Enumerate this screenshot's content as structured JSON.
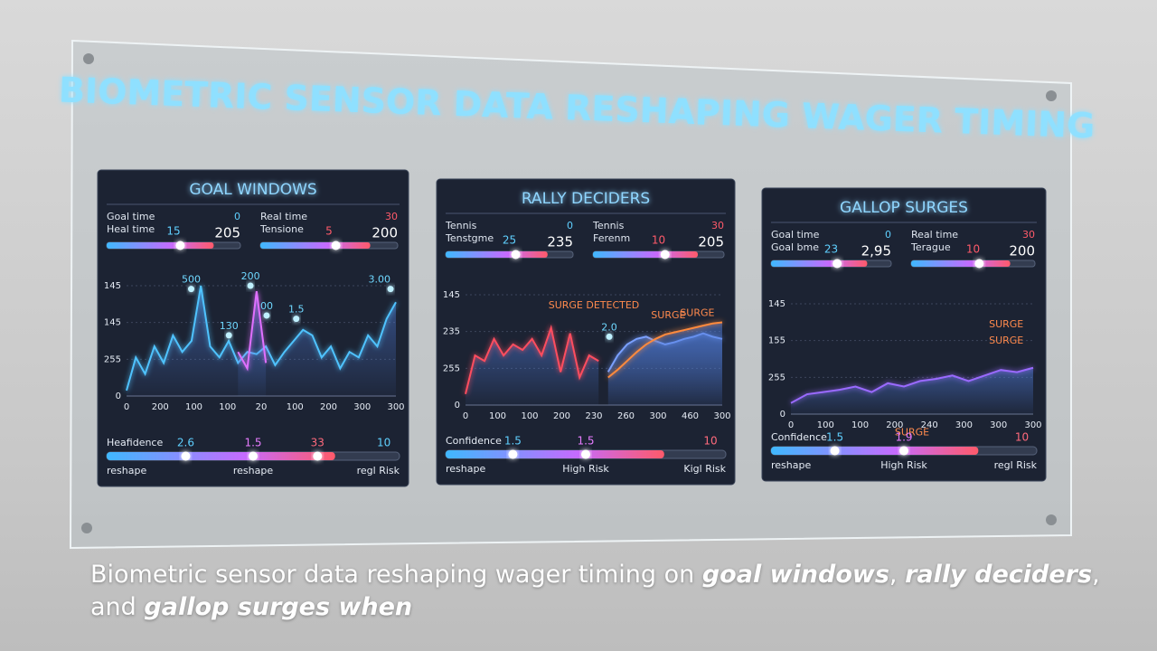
{
  "title": "BIOMETRIC SENSOR DATA RESHAPING WAGER TIMING",
  "panels": [
    {
      "title": "GOAL WINDOWS",
      "metrics": [
        {
          "label1": "Goal time",
          "value1": "0",
          "label2": "Heal time",
          "small": "15",
          "big": "205"
        },
        {
          "label1": "Real time",
          "value1": "30",
          "label2": "Tensione",
          "small": "5",
          "big": "200"
        }
      ],
      "chart": {
        "ylim": [
          0,
          100
        ],
        "y_labels": [
          "145",
          "145",
          "255",
          "0"
        ],
        "x_labels": [
          "0",
          "200",
          "100",
          "100",
          "20",
          "100",
          "200",
          "300",
          "300"
        ],
        "annotations": [
          "500",
          "200",
          "130",
          "00",
          "1.5",
          "3.00"
        ],
        "series": [
          {
            "color": "#4fc3ff",
            "values": [
              5,
              35,
              20,
              45,
              30,
              55,
              40,
              50,
              100,
              45,
              35,
              50,
              30,
              40,
              38,
              45,
              28,
              40,
              50,
              60,
              55,
              35,
              45,
              25,
              40,
              35,
              55,
              45,
              70,
              85
            ]
          },
          {
            "color": "#e070ff",
            "values": [
              null,
              null,
              null,
              null,
              null,
              null,
              null,
              null,
              null,
              null,
              null,
              null,
              40,
              25,
              95,
              30,
              null,
              null,
              null,
              null,
              null,
              null,
              null,
              null,
              null,
              null,
              null,
              null,
              null,
              null
            ]
          }
        ]
      },
      "confidence": {
        "label": "Heafidence",
        "values": [
          "2.6",
          "1.5",
          "33",
          "10"
        ],
        "footer": [
          "reshape",
          "reshape",
          "regl Risk"
        ]
      }
    },
    {
      "title": "RALLY DECIDERS",
      "metrics": [
        {
          "label1": "Tennis",
          "value1": "0",
          "label2": "Tenstgme",
          "small": "25",
          "big": "235"
        },
        {
          "label1": "Tennis",
          "value1": "30",
          "label2": "Ferenm",
          "small": "10",
          "big": "205"
        }
      ],
      "chart": {
        "ylim": [
          0,
          100
        ],
        "y_labels": [
          "145",
          "235",
          "255",
          "0"
        ],
        "x_labels": [
          "0",
          "100",
          "100",
          "200",
          "230",
          "260",
          "300",
          "460",
          "300"
        ],
        "annotations": [
          "SURGE DETECTED",
          "2.0",
          "SURGE",
          "SURGE"
        ],
        "series": [
          {
            "color": "#ff4d5e",
            "values": [
              10,
              45,
              40,
              60,
              45,
              55,
              50,
              60,
              45,
              70,
              30,
              65,
              25,
              45,
              40,
              null,
              null,
              null,
              null,
              null,
              null,
              null,
              null,
              null,
              null,
              null,
              null,
              null
            ]
          },
          {
            "color": "#7aa0ff",
            "values": [
              null,
              null,
              null,
              null,
              null,
              null,
              null,
              null,
              null,
              null,
              null,
              null,
              null,
              null,
              null,
              30,
              45,
              55,
              60,
              62,
              58,
              55,
              57,
              60,
              62,
              65,
              62,
              60
            ]
          },
          {
            "color": "#ff8a3d",
            "values": [
              null,
              null,
              null,
              null,
              null,
              null,
              null,
              null,
              null,
              null,
              null,
              null,
              null,
              null,
              null,
              25,
              32,
              40,
              48,
              55,
              60,
              64,
              66,
              68,
              70,
              72,
              74,
              75
            ]
          }
        ]
      },
      "confidence": {
        "label": "Confidence",
        "values": [
          "1.5",
          "1.5",
          "10"
        ],
        "footer": [
          "reshape",
          "High Risk",
          "Kigl Risk"
        ]
      }
    },
    {
      "title": "GALLOP SURGES",
      "metrics": [
        {
          "label1": "Goal time",
          "value1": "0",
          "label2": "Goal bme",
          "small": "23",
          "big": "2,95"
        },
        {
          "label1": "Real time",
          "value1": "30",
          "label2": "Terague",
          "small": "10",
          "big": "200"
        }
      ],
      "chart": {
        "ylim": [
          0,
          100
        ],
        "y_labels": [
          "145",
          "155",
          "255",
          "0"
        ],
        "x_labels": [
          "0",
          "100",
          "100",
          "200",
          "240",
          "300",
          "300",
          "300"
        ],
        "annotations": [
          "SURGE",
          "SURGE",
          "SURGE"
        ],
        "series": [
          {
            "color": "#9a6bff",
            "values": [
              10,
              18,
              20,
              22,
              25,
              20,
              28,
              25,
              30,
              32,
              35,
              30,
              35,
              40,
              38,
              42
            ]
          }
        ]
      },
      "confidence": {
        "label": "Confidence",
        "values": [
          "1.5",
          "1.9",
          "10"
        ],
        "footer": [
          "reshape",
          "High Risk",
          "regl Risk"
        ]
      }
    }
  ],
  "caption": [
    {
      "text": "Biometric sensor data reshaping wager timing on "
    },
    {
      "text": "goal windows",
      "em": true
    },
    {
      "text": ", "
    },
    {
      "text": "rally deciders",
      "em": true
    },
    {
      "text": ", and "
    },
    {
      "text": "gallop surges when",
      "em": true
    }
  ]
}
